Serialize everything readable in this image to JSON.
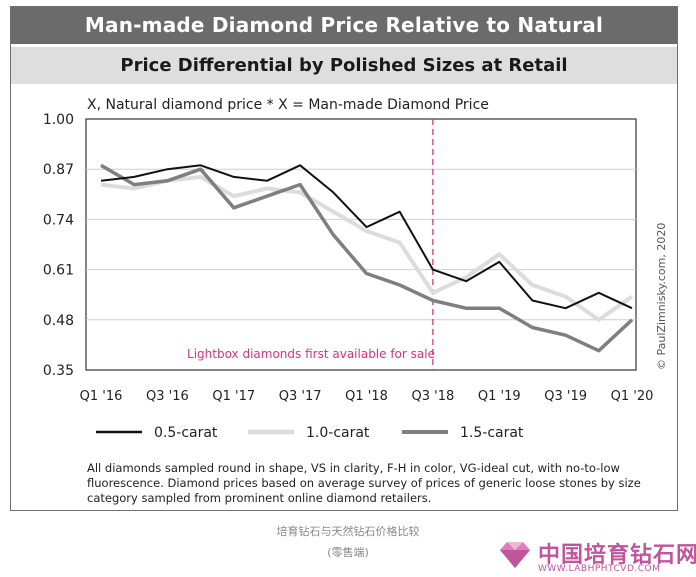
{
  "header": {
    "title": "Man-made Diamond Price Relative to Natural",
    "subtitle": "Price Differential by Polished Sizes at Retail"
  },
  "formula": "X, Natural diamond price * X = Man-made Diamond Price",
  "annotation": "Lightbox diamonds first available for sale",
  "credit": "© PaulZimnisky.com, 2020",
  "footnote": "All diamonds sampled round in shape, VS in clarity, F-H in color, VG-ideal cut, with no-to-low fluorescence. Diamond prices based on average survey of prices of generic loose stones by size category sampled from prominent online diamond retailers.",
  "caption": {
    "line1": "培育钻石与天然钻石价格比较",
    "line2": "(零售端)"
  },
  "logo": {
    "name": "中国培育钻石网",
    "url": "WWW.LABHPHTCVD.COM"
  },
  "colors": {
    "header_bg": "#6b6b6b",
    "subheader_bg": "#dedede",
    "series_0_5": "#111111",
    "series_1_0": "#dcdcdc",
    "series_1_5": "#7f7f7f",
    "annotation_line": "#d63384",
    "logo": "#c0549d"
  },
  "chart_data": {
    "type": "line",
    "x": [
      "Q1 '16",
      "Q2 '16",
      "Q3 '16",
      "Q4 '16",
      "Q1 '17",
      "Q2 '17",
      "Q3 '17",
      "Q4 '17",
      "Q1 '18",
      "Q2 '18",
      "Q3 '18",
      "Q4 '18",
      "Q1 '19",
      "Q2 '19",
      "Q3 '19",
      "Q4 '19",
      "Q1 '20"
    ],
    "xticks": [
      "Q1 '16",
      "Q3 '16",
      "Q1 '17",
      "Q3 '17",
      "Q1 '18",
      "Q3 '18",
      "Q1 '19",
      "Q3 '19",
      "Q1 '20"
    ],
    "yticks": [
      "1.00",
      "0.87",
      "0.74",
      "0.61",
      "0.48",
      "0.35"
    ],
    "ylim": [
      0.35,
      1.0
    ],
    "annotation_x": "Q3 '18",
    "grid": "horizontal",
    "legend_position": "bottom",
    "series": [
      {
        "name": "0.5-carat",
        "values": [
          0.84,
          0.85,
          0.87,
          0.88,
          0.85,
          0.84,
          0.88,
          0.81,
          0.72,
          0.76,
          0.61,
          0.58,
          0.63,
          0.53,
          0.51,
          0.55,
          0.51
        ]
      },
      {
        "name": "1.0-carat",
        "values": [
          0.83,
          0.82,
          0.84,
          0.85,
          0.8,
          0.82,
          0.81,
          0.76,
          0.71,
          0.68,
          0.55,
          0.59,
          0.65,
          0.57,
          0.54,
          0.48,
          0.54
        ]
      },
      {
        "name": "1.5-carat",
        "values": [
          0.88,
          0.83,
          0.84,
          0.87,
          0.77,
          0.8,
          0.83,
          0.7,
          0.6,
          0.57,
          0.53,
          0.51,
          0.51,
          0.46,
          0.44,
          0.4,
          0.48
        ]
      }
    ]
  }
}
